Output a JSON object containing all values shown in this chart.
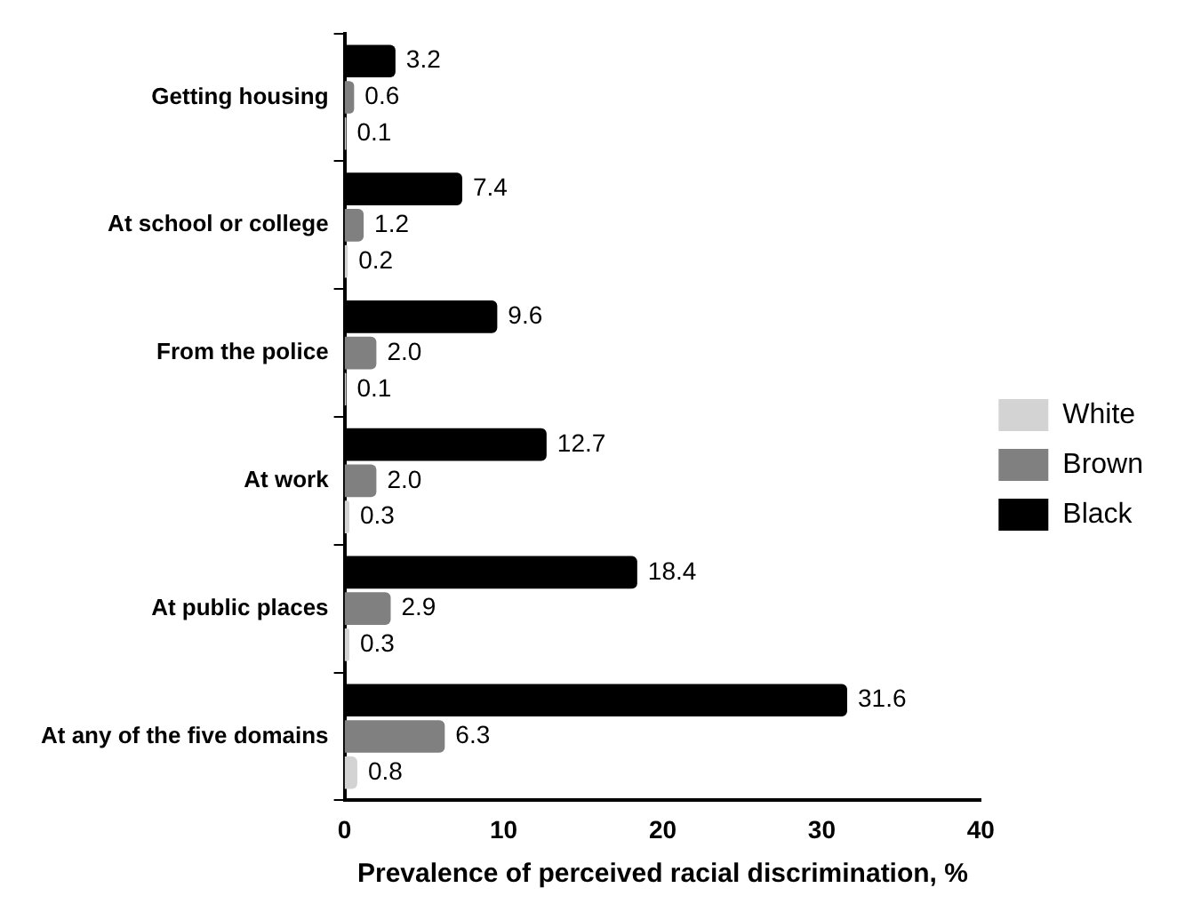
{
  "chart_data": {
    "type": "bar",
    "orientation": "horizontal",
    "xlabel": "Prevalence of perceived racial discrimination, %",
    "categories": [
      "Getting housing",
      "At school or college",
      "From the police",
      "At work",
      "At public places",
      "At any of the five domains"
    ],
    "series": [
      {
        "name": "White",
        "color": "#d3d3d3",
        "values": [
          0.1,
          0.2,
          0.1,
          0.3,
          0.3,
          0.8
        ],
        "value_labels": [
          "0.1",
          "0.2",
          "0.1",
          "0.3",
          "0.3",
          "0.8"
        ]
      },
      {
        "name": "Brown",
        "color": "#808080",
        "values": [
          0.6,
          1.2,
          2.0,
          2.0,
          2.9,
          6.3
        ],
        "value_labels": [
          "0.6",
          "1.2",
          "2.0",
          "2.0",
          "2.9",
          "6.3"
        ]
      },
      {
        "name": "Black",
        "color": "#000000",
        "values": [
          3.2,
          7.4,
          9.6,
          12.7,
          18.4,
          31.6
        ],
        "value_labels": [
          "3.2",
          "7.4",
          "9.6",
          "12.7",
          "18.4",
          "31.6"
        ]
      }
    ],
    "xlim": [
      0,
      40
    ],
    "xticks": [
      0,
      10,
      20,
      30,
      40
    ],
    "grid": false,
    "legend": "right"
  }
}
